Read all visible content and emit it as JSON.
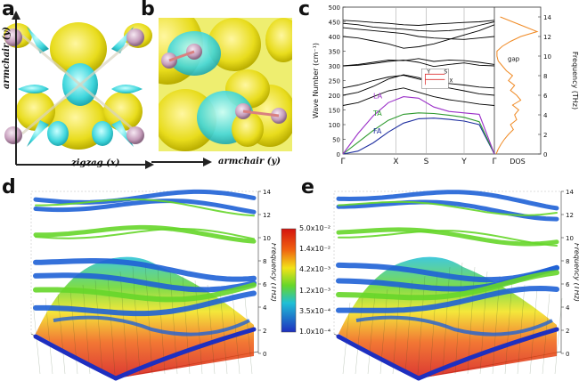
{
  "panels": {
    "a": {
      "letter": "a",
      "x_axis_label": "zigzag (x)",
      "y_axis_label": "armchair (y)"
    },
    "b": {
      "letter": "b",
      "x_axis_label": "armchair (y)"
    },
    "c": {
      "letter": "c"
    },
    "d": {
      "letter": "d",
      "z_axis_label": "Frequency (THz)"
    },
    "e": {
      "letter": "e",
      "z_axis_label": "Frequency (THz)"
    }
  },
  "colorbar": {
    "labels": [
      "5.0x10⁻²",
      "1.4x10⁻²",
      "4.2x10⁻³",
      "1.2x10⁻³",
      "3.5x10⁻⁴",
      "1.0x10⁻⁴"
    ]
  },
  "chart_data": [
    {
      "type": "line",
      "ylabel": "Wave Number (cm⁻¹)",
      "y2label": "Frequency (THz)",
      "ylim": [
        0,
        500
      ],
      "y2lim": [
        0,
        15
      ],
      "yticks": [
        0,
        50,
        100,
        150,
        200,
        250,
        300,
        350,
        400,
        450,
        500
      ],
      "y2ticks": [
        0,
        2,
        4,
        6,
        8,
        10,
        12,
        14
      ],
      "kpath": [
        "Γ",
        "X",
        "S",
        "Y",
        "Γ"
      ],
      "xlabel_dos": "DOS",
      "annotations": {
        "gap": "gap",
        "la": "LA",
        "ta": "TA",
        "fa": "FA",
        "bz_Y": "Y",
        "bz_S": "S",
        "bz_X": "X"
      },
      "branch_colors": {
        "LA": "#9b30c8",
        "TA": "#2e9a2e",
        "FA": "#1f2fa0",
        "optical": "#000000",
        "dos": "#f08a24"
      },
      "series": [
        {
          "name": "FA",
          "x": [
            0,
            0.1,
            0.2,
            0.3,
            0.4,
            0.5,
            0.6,
            0.7,
            0.8,
            0.9,
            1.0
          ],
          "values": [
            0,
            10,
            38,
            75,
            105,
            120,
            122,
            118,
            112,
            100,
            0
          ]
        },
        {
          "name": "TA",
          "values": [
            0,
            40,
            80,
            115,
            135,
            140,
            138,
            132,
            125,
            110,
            0
          ]
        },
        {
          "name": "LA",
          "values": [
            0,
            70,
            130,
            175,
            195,
            190,
            160,
            145,
            140,
            135,
            0
          ]
        }
      ],
      "optical": [
        [
          200,
          210,
          230,
          255,
          270,
          260,
          240,
          225,
          215,
          205,
          200
        ],
        [
          165,
          175,
          195,
          215,
          225,
          210,
          195,
          185,
          178,
          170,
          165
        ],
        [
          225,
          235,
          250,
          262,
          268,
          255,
          245,
          240,
          235,
          228,
          225
        ],
        [
          300,
          305,
          312,
          320,
          318,
          325,
          315,
          320,
          318,
          312,
          305
        ],
        [
          300,
          302,
          308,
          315,
          320,
          312,
          298,
          305,
          310,
          302,
          300
        ],
        [
          400,
          395,
          385,
          375,
          360,
          365,
          375,
          390,
          405,
          420,
          440
        ],
        [
          430,
          425,
          420,
          415,
          410,
          400,
          395,
          392,
          390,
          395,
          400
        ],
        [
          445,
          440,
          432,
          428,
          425,
          420,
          418,
          420,
          425,
          438,
          450
        ],
        [
          455,
          452,
          448,
          445,
          440,
          438,
          442,
          445,
          448,
          450,
          455
        ]
      ],
      "dos": {
        "freq_thz": [
          0,
          0.5,
          1,
          1.5,
          2,
          2.5,
          3,
          3.5,
          4,
          4.5,
          5,
          5.5,
          6,
          6.5,
          7,
          7.5,
          8,
          8.5,
          9,
          9.5,
          10,
          10.5,
          11,
          11.5,
          12,
          12.5,
          13,
          13.5,
          14
        ],
        "value": [
          0,
          0.05,
          0.12,
          0.2,
          0.3,
          0.42,
          0.35,
          0.5,
          0.45,
          0.55,
          0.4,
          0.6,
          0.5,
          0.35,
          0.45,
          0.3,
          0.4,
          0.25,
          0.15,
          0.05,
          0.02,
          0.02,
          0.15,
          0.35,
          0.6,
          1.0,
          0.7,
          0.4,
          0.1
        ]
      }
    },
    {
      "type": "heatmap",
      "zlabel": "Frequency (THz)",
      "zlim": [
        0,
        14
      ],
      "zticks": [
        0,
        2,
        4,
        6,
        8,
        10,
        12,
        14
      ]
    },
    {
      "type": "heatmap",
      "zlabel": "Frequency (THz)",
      "zlim": [
        0,
        14
      ],
      "zticks": [
        0,
        2,
        4,
        6,
        8,
        10,
        12,
        14
      ]
    }
  ]
}
